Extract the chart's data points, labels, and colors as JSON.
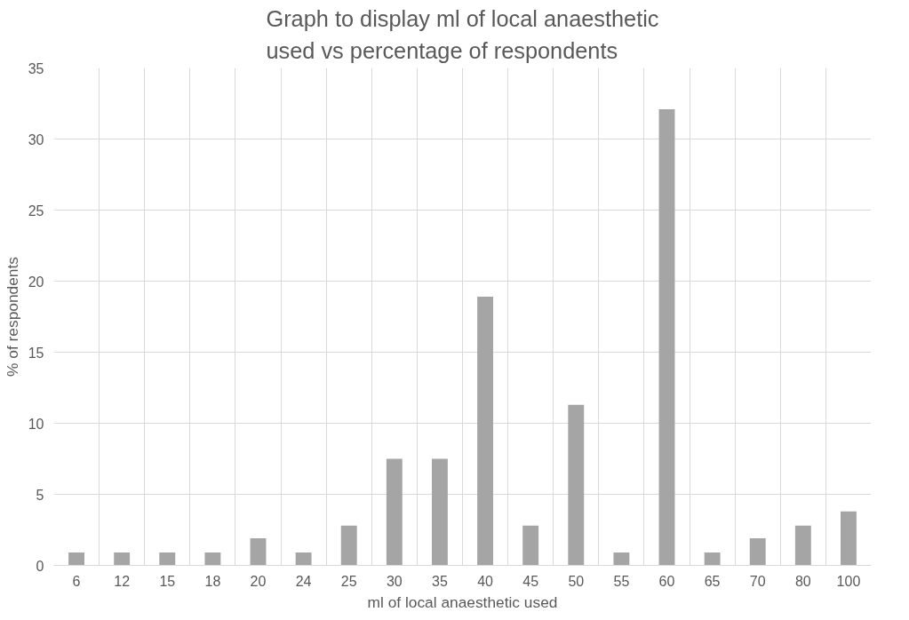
{
  "chart_data": {
    "type": "bar",
    "title": "Graph to display ml of local anaesthetic used vs percentage of respondents",
    "xlabel": "ml of local anaesthetic used",
    "ylabel": "% of respondents",
    "categories": [
      "6",
      "12",
      "15",
      "18",
      "20",
      "24",
      "25",
      "30",
      "35",
      "40",
      "45",
      "50",
      "55",
      "60",
      "65",
      "70",
      "80",
      "100"
    ],
    "values": [
      0.9,
      0.9,
      0.9,
      0.9,
      1.9,
      0.9,
      2.8,
      7.5,
      7.5,
      18.9,
      2.8,
      11.3,
      0.9,
      32.1,
      0.9,
      1.9,
      2.8,
      3.8
    ],
    "color": "#a5a5a5",
    "ylim": [
      0,
      35
    ],
    "yticks": [
      0,
      5,
      10,
      15,
      20,
      25,
      30,
      35
    ],
    "grid": true
  }
}
